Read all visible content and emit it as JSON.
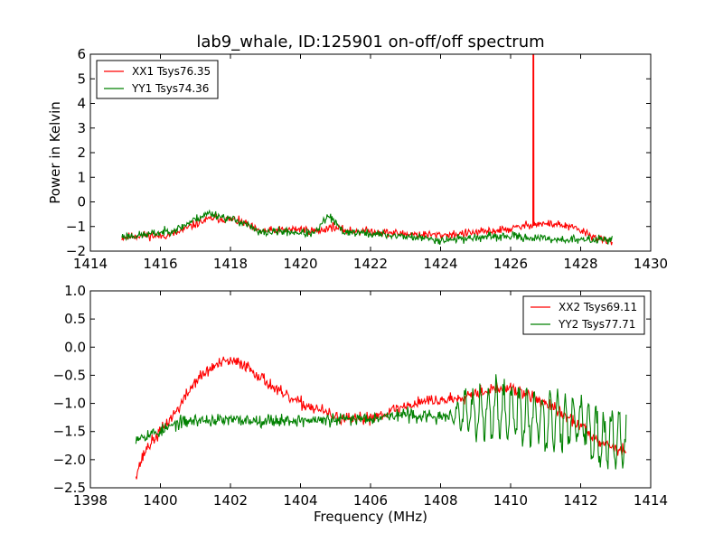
{
  "figure": {
    "title": "lab9_whale, ID:125901 on-off/off spectrum",
    "xlabel": "Frequency (MHz)",
    "ylabel": "Power in Kelvin"
  },
  "colors": {
    "xx": "#ff0000",
    "yy": "#008000"
  },
  "chart_data": [
    {
      "type": "line",
      "title": "lab9_whale, ID:125901 on-off/off spectrum",
      "ylabel": "Power in Kelvin",
      "xlim": [
        1414,
        1430
      ],
      "ylim": [
        -2,
        6
      ],
      "xticks": [
        1414,
        1416,
        1418,
        1420,
        1422,
        1424,
        1426,
        1428,
        1430
      ],
      "yticks": [
        -2,
        -1,
        0,
        1,
        2,
        3,
        4,
        5,
        6
      ],
      "legend_position": "top-left",
      "series": [
        {
          "name": "XX1 Tsys76.35",
          "color": "#ff0000",
          "noise": 0.12,
          "seed": 11,
          "points": [
            [
              1414.9,
              -1.45
            ],
            [
              1415.5,
              -1.35
            ],
            [
              1416.0,
              -1.4
            ],
            [
              1416.5,
              -1.25
            ],
            [
              1417.0,
              -0.9
            ],
            [
              1417.5,
              -0.65
            ],
            [
              1418.0,
              -0.72
            ],
            [
              1418.4,
              -0.85
            ],
            [
              1418.8,
              -1.2
            ],
            [
              1419.5,
              -1.15
            ],
            [
              1420.0,
              -1.1
            ],
            [
              1420.5,
              -1.2
            ],
            [
              1420.9,
              -1.0
            ],
            [
              1421.2,
              -1.15
            ],
            [
              1422.0,
              -1.2
            ],
            [
              1423.0,
              -1.3
            ],
            [
              1424.0,
              -1.35
            ],
            [
              1425.0,
              -1.25
            ],
            [
              1426.0,
              -1.1
            ],
            [
              1426.5,
              -0.95
            ],
            [
              1426.6,
              -0.9
            ],
            [
              1427.3,
              -0.9
            ],
            [
              1427.9,
              -1.1
            ],
            [
              1428.5,
              -1.5
            ],
            [
              1428.9,
              -1.65
            ]
          ],
          "spike": {
            "x": 1426.65,
            "y": 6.0
          }
        },
        {
          "name": "YY1 Tsys74.36",
          "color": "#008000",
          "noise": 0.12,
          "seed": 23,
          "points": [
            [
              1414.9,
              -1.4
            ],
            [
              1415.5,
              -1.35
            ],
            [
              1416.0,
              -1.25
            ],
            [
              1416.5,
              -1.1
            ],
            [
              1417.0,
              -0.7
            ],
            [
              1417.4,
              -0.45
            ],
            [
              1418.0,
              -0.7
            ],
            [
              1418.4,
              -0.85
            ],
            [
              1418.8,
              -1.25
            ],
            [
              1419.5,
              -1.2
            ],
            [
              1420.0,
              -1.25
            ],
            [
              1420.4,
              -1.3
            ],
            [
              1420.8,
              -0.55
            ],
            [
              1421.2,
              -1.2
            ],
            [
              1422.0,
              -1.3
            ],
            [
              1423.0,
              -1.4
            ],
            [
              1424.0,
              -1.55
            ],
            [
              1425.0,
              -1.45
            ],
            [
              1426.0,
              -1.4
            ],
            [
              1427.0,
              -1.5
            ],
            [
              1428.0,
              -1.55
            ],
            [
              1428.9,
              -1.5
            ]
          ]
        }
      ]
    },
    {
      "type": "line",
      "xlabel": "Frequency (MHz)",
      "xlim": [
        1398,
        1414
      ],
      "ylim": [
        -2.5,
        1.0
      ],
      "xticks": [
        1398,
        1400,
        1402,
        1404,
        1406,
        1408,
        1410,
        1412,
        1414
      ],
      "yticks": [
        -2.5,
        -2.0,
        -1.5,
        -1.0,
        -0.5,
        0.0,
        0.5,
        1.0
      ],
      "legend_position": "top-right",
      "series": [
        {
          "name": "XX2 Tsys69.11",
          "color": "#ff0000",
          "noise": 0.08,
          "seed": 37,
          "points": [
            [
              1399.3,
              -2.25
            ],
            [
              1399.6,
              -1.8
            ],
            [
              1400.0,
              -1.5
            ],
            [
              1400.5,
              -1.1
            ],
            [
              1401.0,
              -0.6
            ],
            [
              1401.5,
              -0.35
            ],
            [
              1401.9,
              -0.25
            ],
            [
              1402.4,
              -0.3
            ],
            [
              1402.9,
              -0.55
            ],
            [
              1403.5,
              -0.85
            ],
            [
              1404.0,
              -1.0
            ],
            [
              1404.5,
              -1.1
            ],
            [
              1405.0,
              -1.25
            ],
            [
              1405.5,
              -1.3
            ],
            [
              1406.0,
              -1.25
            ],
            [
              1406.5,
              -1.15
            ],
            [
              1407.0,
              -1.05
            ],
            [
              1407.5,
              -0.95
            ],
            [
              1408.0,
              -0.95
            ],
            [
              1408.5,
              -0.9
            ],
            [
              1409.0,
              -0.8
            ],
            [
              1409.5,
              -0.75
            ],
            [
              1410.0,
              -0.75
            ],
            [
              1410.5,
              -0.85
            ],
            [
              1411.0,
              -1.0
            ],
            [
              1411.5,
              -1.2
            ],
            [
              1412.0,
              -1.4
            ],
            [
              1412.5,
              -1.65
            ],
            [
              1413.0,
              -1.8
            ],
            [
              1413.3,
              -1.85
            ]
          ]
        },
        {
          "name": "YY2 Tsys77.71",
          "color": "#008000",
          "noise": 0.08,
          "seed": 53,
          "osc": {
            "from": 1408.0,
            "amp": 0.5,
            "period": 0.22
          },
          "points": [
            [
              1399.3,
              -1.6
            ],
            [
              1400.0,
              -1.5
            ],
            [
              1400.5,
              -1.35
            ],
            [
              1401.0,
              -1.3
            ],
            [
              1402.0,
              -1.3
            ],
            [
              1403.0,
              -1.3
            ],
            [
              1404.0,
              -1.3
            ],
            [
              1405.0,
              -1.3
            ],
            [
              1406.0,
              -1.25
            ],
            [
              1407.0,
              -1.2
            ],
            [
              1408.0,
              -1.25
            ],
            [
              1408.5,
              -1.2
            ],
            [
              1409.0,
              -1.15
            ],
            [
              1410.0,
              -1.15
            ],
            [
              1411.0,
              -1.3
            ],
            [
              1412.0,
              -1.35
            ],
            [
              1412.5,
              -1.6
            ],
            [
              1413.3,
              -1.7
            ]
          ]
        }
      ]
    }
  ]
}
